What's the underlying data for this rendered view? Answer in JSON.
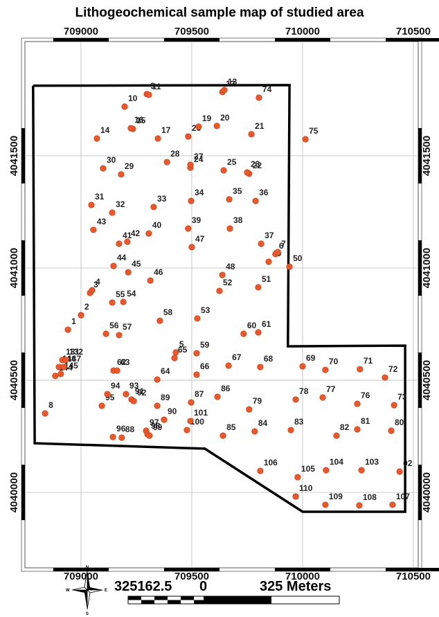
{
  "title": "Lithogeochemical sample map of studied area",
  "map": {
    "xlim": [
      708747,
      710522
    ],
    "ylim": [
      4039664,
      4042009
    ],
    "xticks": [
      709000,
      709500,
      710000,
      710500
    ],
    "yticks": [
      4040000,
      4040500,
      4041000,
      4041500
    ],
    "boundary": {
      "easting": [
        708784,
        709941,
        709934,
        710463,
        710463,
        710000,
        709559,
        708791,
        708784
      ],
      "northing": [
        4041812,
        4041815,
        4040651,
        4040654,
        4039914,
        4039914,
        4040195,
        4040219,
        4041812
      ]
    },
    "samples": [
      {
        "label": "1",
        "easting": 708941,
        "northing": 4040725
      },
      {
        "label": "2",
        "easting": 709000,
        "northing": 4040790
      },
      {
        "label": "3",
        "easting": 709041,
        "northing": 4040889
      },
      {
        "label": "4",
        "easting": 709050,
        "northing": 4040901
      },
      {
        "label": "5",
        "easting": 709428,
        "northing": 4040624
      },
      {
        "label": "6",
        "easting": 709878,
        "northing": 4041062
      },
      {
        "label": "7",
        "easting": 709888,
        "northing": 4041071
      },
      {
        "label": "8",
        "easting": 708838,
        "northing": 4040352
      },
      {
        "label": "9",
        "easting": 709297,
        "northing": 4041775
      },
      {
        "label": "10",
        "easting": 709197,
        "northing": 4041719
      },
      {
        "label": "11",
        "easting": 709306,
        "northing": 4041772
      },
      {
        "label": "12",
        "easting": 709638,
        "northing": 4041784
      },
      {
        "label": "13",
        "easting": 709647,
        "northing": 4041793
      },
      {
        "label": "14",
        "easting": 709072,
        "northing": 4041577
      },
      {
        "label": "15",
        "easting": 709234,
        "northing": 4041620
      },
      {
        "label": "16",
        "easting": 709225,
        "northing": 4041623
      },
      {
        "label": "17",
        "easting": 709347,
        "northing": 4041577
      },
      {
        "label": "19",
        "easting": 709531,
        "northing": 4041630
      },
      {
        "label": "20",
        "easting": 709613,
        "northing": 4041633
      },
      {
        "label": "21",
        "easting": 709769,
        "northing": 4041596
      },
      {
        "label": "22",
        "easting": 709759,
        "northing": 4041420
      },
      {
        "label": "23",
        "easting": 709750,
        "northing": 4041426
      },
      {
        "label": "24",
        "easting": 709494,
        "northing": 4041447
      },
      {
        "label": "25",
        "easting": 709644,
        "northing": 4041435
      },
      {
        "label": "26",
        "easting": 709484,
        "northing": 4041586
      },
      {
        "label": "27",
        "easting": 709494,
        "northing": 4041460
      },
      {
        "label": "28",
        "easting": 709388,
        "northing": 4041472
      },
      {
        "label": "29",
        "easting": 709181,
        "northing": 4041417
      },
      {
        "label": "30",
        "easting": 709100,
        "northing": 4041444
      },
      {
        "label": "31",
        "easting": 709047,
        "northing": 4041281
      },
      {
        "label": "32",
        "easting": 709141,
        "northing": 4041247
      },
      {
        "label": "33",
        "easting": 709328,
        "northing": 4041272
      },
      {
        "label": "34",
        "easting": 709497,
        "northing": 4041299
      },
      {
        "label": "35",
        "easting": 709669,
        "northing": 4041306
      },
      {
        "label": "36",
        "easting": 709788,
        "northing": 4041299
      },
      {
        "label": "37",
        "easting": 709813,
        "northing": 4041108
      },
      {
        "label": "38",
        "easting": 709672,
        "northing": 4041176
      },
      {
        "label": "39",
        "easting": 709484,
        "northing": 4041176
      },
      {
        "label": "40",
        "easting": 709306,
        "northing": 4041154
      },
      {
        "label": "41",
        "easting": 709172,
        "northing": 4041108
      },
      {
        "label": "42",
        "easting": 709209,
        "northing": 4041117
      },
      {
        "label": "43",
        "easting": 709056,
        "northing": 4041170
      },
      {
        "label": "44",
        "easting": 709147,
        "northing": 4041009
      },
      {
        "label": "45",
        "easting": 709213,
        "northing": 4040981
      },
      {
        "label": "46",
        "easting": 709313,
        "northing": 4040944
      },
      {
        "label": "47",
        "easting": 709500,
        "northing": 4041093
      },
      {
        "label": "48",
        "easting": 709638,
        "northing": 4040969
      },
      {
        "label": "49",
        "easting": 709847,
        "northing": 4041028
      },
      {
        "label": "50",
        "easting": 709941,
        "northing": 4041006
      },
      {
        "label": "51",
        "easting": 709800,
        "northing": 4040914
      },
      {
        "label": "52",
        "easting": 709625,
        "northing": 4040898
      },
      {
        "label": "53",
        "easting": 709525,
        "northing": 4040775
      },
      {
        "label": "54",
        "easting": 709191,
        "northing": 4040849
      },
      {
        "label": "55",
        "easting": 709141,
        "northing": 4040846
      },
      {
        "label": "56",
        "easting": 709113,
        "northing": 4040707
      },
      {
        "label": "57",
        "easting": 709172,
        "northing": 4040701
      },
      {
        "label": "58",
        "easting": 709356,
        "northing": 4040765
      },
      {
        "label": "59",
        "easting": 709522,
        "northing": 4040620
      },
      {
        "label": "60",
        "easting": 709734,
        "northing": 4040707
      },
      {
        "label": "61",
        "easting": 709800,
        "northing": 4040713
      },
      {
        "label": "62",
        "easting": 709147,
        "northing": 4040543
      },
      {
        "label": "63",
        "easting": 709163,
        "northing": 4040543
      },
      {
        "label": "64",
        "easting": 709344,
        "northing": 4040503
      },
      {
        "label": "65",
        "easting": 709422,
        "northing": 4040599
      },
      {
        "label": "66",
        "easting": 709522,
        "northing": 4040525
      },
      {
        "label": "67",
        "easting": 709666,
        "northing": 4040565
      },
      {
        "label": "68",
        "easting": 709809,
        "northing": 4040559
      },
      {
        "label": "69",
        "easting": 710000,
        "northing": 4040562
      },
      {
        "label": "70",
        "easting": 710103,
        "northing": 4040546
      },
      {
        "label": "71",
        "easting": 710259,
        "northing": 4040549
      },
      {
        "label": "72",
        "easting": 710372,
        "northing": 4040512
      },
      {
        "label": "73",
        "easting": 710413,
        "northing": 4040389
      },
      {
        "label": "74",
        "easting": 709803,
        "northing": 4041759
      },
      {
        "label": "75",
        "easting": 710013,
        "northing": 4041574
      },
      {
        "label": "76",
        "easting": 710247,
        "northing": 4040395
      },
      {
        "label": "77",
        "easting": 710091,
        "northing": 4040423
      },
      {
        "label": "78",
        "easting": 709969,
        "northing": 4040414
      },
      {
        "label": "79",
        "easting": 709759,
        "northing": 4040370
      },
      {
        "label": "80",
        "easting": 710400,
        "northing": 4040275
      },
      {
        "label": "81",
        "easting": 710247,
        "northing": 4040281
      },
      {
        "label": "82",
        "easting": 710153,
        "northing": 4040253
      },
      {
        "label": "83",
        "easting": 709947,
        "northing": 4040278
      },
      {
        "label": "84",
        "easting": 709784,
        "northing": 4040272
      },
      {
        "label": "85",
        "easting": 709641,
        "northing": 4040253
      },
      {
        "label": "86",
        "easting": 709616,
        "northing": 4040426
      },
      {
        "label": "87",
        "easting": 709497,
        "northing": 4040401
      },
      {
        "label": "88",
        "easting": 709184,
        "northing": 4040244
      },
      {
        "label": "89",
        "easting": 709344,
        "northing": 4040386
      },
      {
        "label": "90",
        "easting": 709375,
        "northing": 4040324
      },
      {
        "label": "91",
        "easting": 709228,
        "northing": 4040414
      },
      {
        "label": "92",
        "easting": 709238,
        "northing": 4040407
      },
      {
        "label": "93",
        "easting": 709203,
        "northing": 4040438
      },
      {
        "label": "94",
        "easting": 709119,
        "northing": 4040438
      },
      {
        "label": "95",
        "easting": 709094,
        "northing": 4040386
      },
      {
        "label": "96",
        "easting": 709144,
        "northing": 4040247
      },
      {
        "label": "97",
        "easting": 709294,
        "northing": 4040275
      },
      {
        "label": "98",
        "easting": 709300,
        "northing": 4040259
      },
      {
        "label": "99",
        "easting": 709309,
        "northing": 4040253
      },
      {
        "label": "100",
        "easting": 709478,
        "northing": 4040278
      },
      {
        "label": "101",
        "easting": 709494,
        "northing": 4040318
      },
      {
        "label": "02",
        "easting": 710438,
        "northing": 4040093
      },
      {
        "label": "103",
        "easting": 710266,
        "northing": 4040099
      },
      {
        "label": "104",
        "easting": 710106,
        "northing": 4040099
      },
      {
        "label": "105",
        "easting": 709978,
        "northing": 4040068
      },
      {
        "label": "106",
        "easting": 709809,
        "northing": 4040096
      },
      {
        "label": "107",
        "easting": 710406,
        "northing": 4039945
      },
      {
        "label": "108",
        "easting": 710256,
        "northing": 4039942
      },
      {
        "label": "109",
        "easting": 710103,
        "northing": 4039945
      },
      {
        "label": "110",
        "easting": 709969,
        "northing": 4039982
      },
      {
        "label": "131",
        "easting": 708916,
        "northing": 4040590
      },
      {
        "label": "132",
        "easting": 708931,
        "northing": 4040590
      },
      {
        "label": "146",
        "easting": 708900,
        "northing": 4040559
      },
      {
        "label": "147",
        "easting": 708922,
        "northing": 4040559
      },
      {
        "label": "144",
        "easting": 708884,
        "northing": 4040519
      },
      {
        "label": "145",
        "easting": 708909,
        "northing": 4040528
      }
    ]
  },
  "scale_bar": {
    "left_label": "325162.5",
    "zero_label": "0",
    "right_label": "325 Meters"
  },
  "north_arrow": {
    "labels": [
      "N",
      "E",
      "S",
      "W"
    ]
  }
}
